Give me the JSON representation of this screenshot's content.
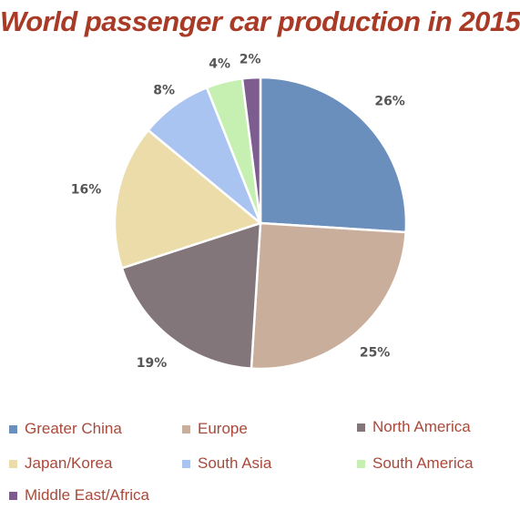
{
  "chart_data": {
    "type": "pie",
    "title": "World passenger car production in 2015",
    "categories": [
      "Greater China",
      "Europe",
      "North America",
      "Japan/Korea",
      "South Asia",
      "South America",
      "Middle East/Africa"
    ],
    "values": [
      26,
      25,
      19,
      16,
      8,
      4,
      2
    ],
    "value_labels": [
      "26%",
      "25%",
      "19%",
      "16%",
      "8%",
      "4%",
      "2%"
    ],
    "colors": [
      "#6a8fbd",
      "#c9ae9c",
      "#83767a",
      "#ecdcaa",
      "#a9c4f0",
      "#c5f0b2",
      "#7d5c8f"
    ],
    "legend_position": "bottom"
  }
}
